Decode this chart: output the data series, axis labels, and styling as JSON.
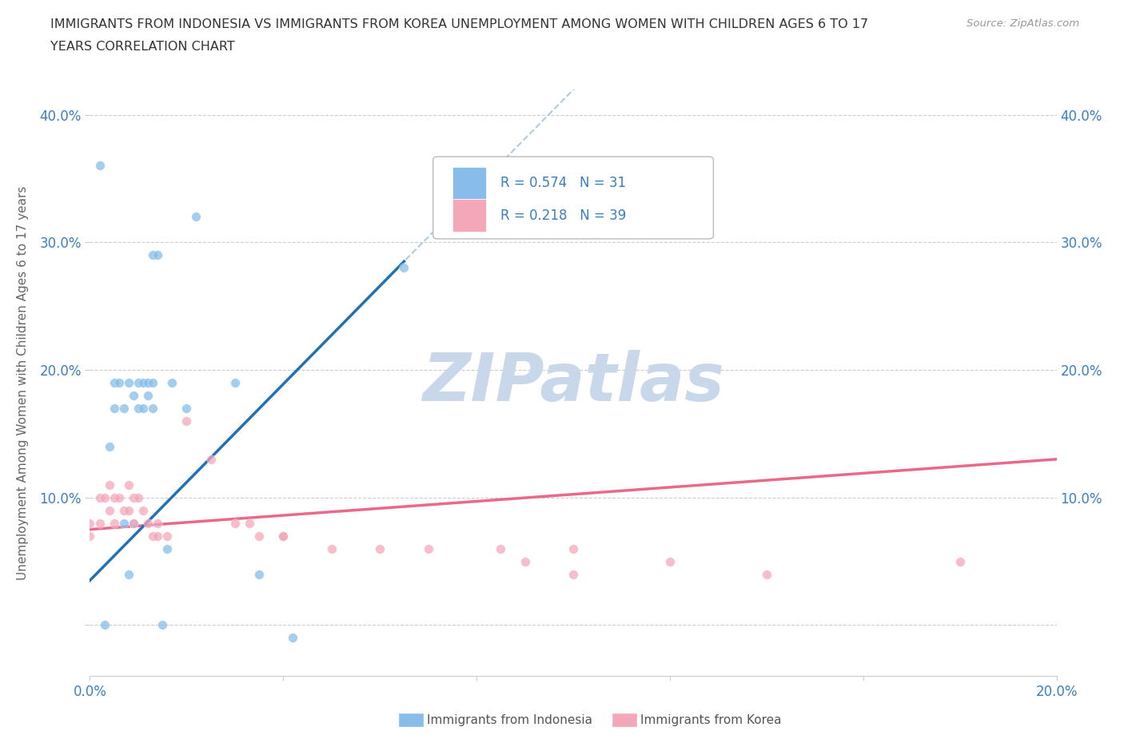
{
  "title_line1": "IMMIGRANTS FROM INDONESIA VS IMMIGRANTS FROM KOREA UNEMPLOYMENT AMONG WOMEN WITH CHILDREN AGES 6 TO 17",
  "title_line2": "YEARS CORRELATION CHART",
  "source": "Source: ZipAtlas.com",
  "ylabel_label": "Unemployment Among Women with Children Ages 6 to 17 years",
  "xmin": 0.0,
  "xmax": 0.2,
  "ymin": -0.04,
  "ymax": 0.42,
  "xticks": [
    0.0,
    0.04,
    0.08,
    0.12,
    0.16,
    0.2
  ],
  "yticks": [
    0.0,
    0.1,
    0.2,
    0.3,
    0.4
  ],
  "ytick_labels_left": [
    "",
    "10.0%",
    "20.0%",
    "30.0%",
    "40.0%"
  ],
  "ytick_labels_right": [
    "",
    "10.0%",
    "20.0%",
    "30.0%",
    "40.0%"
  ],
  "xtick_labels": [
    "0.0%",
    "",
    "",
    "",
    "",
    "20.0%"
  ],
  "R_indonesia": 0.574,
  "N_indonesia": 31,
  "R_korea": 0.218,
  "N_korea": 39,
  "color_indonesia": "#87bde8",
  "color_korea": "#f4a7b9",
  "trend_indonesia_color": "#2171b5",
  "trend_korea_color": "#e8698a",
  "trend_ext_color": "#b0c8e0",
  "watermark": "ZIPatlas",
  "watermark_color": "#c8d8ea",
  "indo_x": [
    0.002,
    0.003,
    0.004,
    0.005,
    0.005,
    0.006,
    0.007,
    0.007,
    0.008,
    0.008,
    0.009,
    0.009,
    0.01,
    0.01,
    0.011,
    0.011,
    0.012,
    0.012,
    0.013,
    0.013,
    0.013,
    0.014,
    0.015,
    0.016,
    0.017,
    0.02,
    0.022,
    0.03,
    0.035,
    0.042,
    0.065
  ],
  "indo_y": [
    0.36,
    0.0,
    0.14,
    0.19,
    0.17,
    0.19,
    0.17,
    0.08,
    0.19,
    0.04,
    0.18,
    0.08,
    0.19,
    0.17,
    0.19,
    0.17,
    0.19,
    0.18,
    0.29,
    0.19,
    0.17,
    0.29,
    0.0,
    0.06,
    0.19,
    0.17,
    0.32,
    0.19,
    0.04,
    -0.01,
    0.28
  ],
  "korea_x": [
    0.0,
    0.0,
    0.002,
    0.002,
    0.003,
    0.004,
    0.004,
    0.005,
    0.005,
    0.006,
    0.007,
    0.008,
    0.008,
    0.009,
    0.009,
    0.01,
    0.011,
    0.012,
    0.013,
    0.014,
    0.014,
    0.016,
    0.02,
    0.025,
    0.03,
    0.033,
    0.035,
    0.04,
    0.04,
    0.05,
    0.06,
    0.07,
    0.085,
    0.09,
    0.1,
    0.1,
    0.12,
    0.14,
    0.18
  ],
  "korea_y": [
    0.08,
    0.07,
    0.1,
    0.08,
    0.1,
    0.09,
    0.11,
    0.1,
    0.08,
    0.1,
    0.09,
    0.11,
    0.09,
    0.1,
    0.08,
    0.1,
    0.09,
    0.08,
    0.07,
    0.08,
    0.07,
    0.07,
    0.16,
    0.13,
    0.08,
    0.08,
    0.07,
    0.07,
    0.07,
    0.06,
    0.06,
    0.06,
    0.06,
    0.05,
    0.06,
    0.04,
    0.05,
    0.04,
    0.05
  ]
}
